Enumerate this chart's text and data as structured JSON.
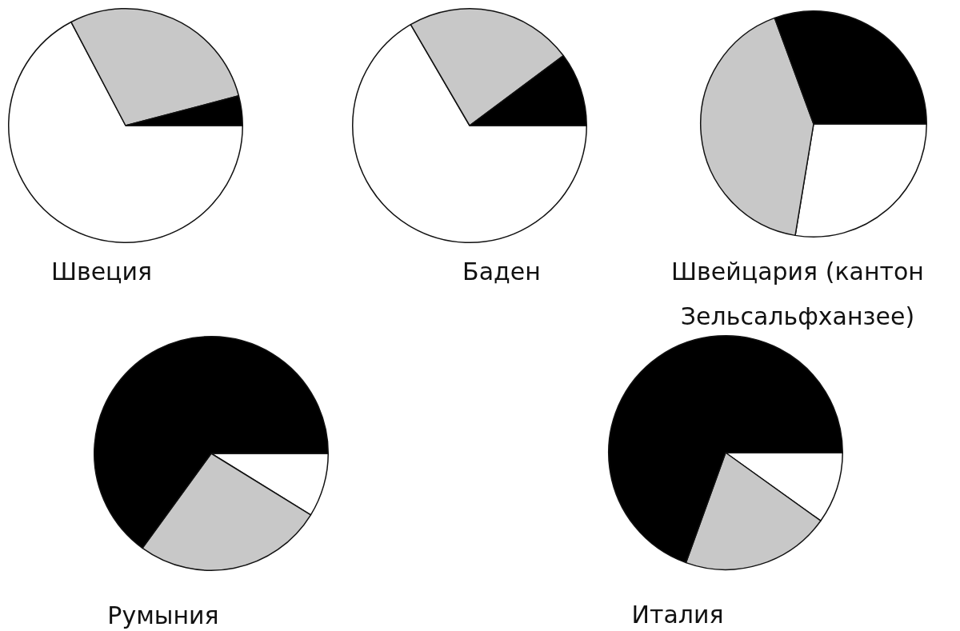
{
  "chart_data": [
    {
      "type": "pie",
      "title": "Швеция",
      "categories": [
        null,
        null,
        null
      ],
      "values": [
        67.3,
        28.6,
        4.1
      ],
      "colors": [
        "#ffffff",
        "#c8c8c8",
        "#000000"
      ],
      "legend": false
    },
    {
      "type": "pie",
      "title": "Баден",
      "categories": [
        null,
        null,
        null
      ],
      "values": [
        66.6,
        23.2,
        10.2
      ],
      "colors": [
        "#ffffff",
        "#c8c8c8",
        "#000000"
      ],
      "legend": false
    },
    {
      "type": "pie",
      "title": "Швейцария (кантон Зельсальфханзее)",
      "categories": [
        null,
        null,
        null
      ],
      "values": [
        27.6,
        41.8,
        30.6
      ],
      "colors": [
        "#ffffff",
        "#c8c8c8",
        "#000000"
      ],
      "legend": false
    },
    {
      "type": "pie",
      "title": "Румыния",
      "categories": [
        null,
        null,
        null
      ],
      "values": [
        8.8,
        26.2,
        65.0
      ],
      "colors": [
        "#ffffff",
        "#c8c8c8",
        "#000000"
      ],
      "legend": false
    },
    {
      "type": "pie",
      "title": "Италия",
      "categories": [
        null,
        null,
        null
      ],
      "values": [
        9.9,
        20.6,
        69.5
      ],
      "colors": [
        "#ffffff",
        "#c8c8c8",
        "#000000"
      ],
      "legend": false
    }
  ]
}
